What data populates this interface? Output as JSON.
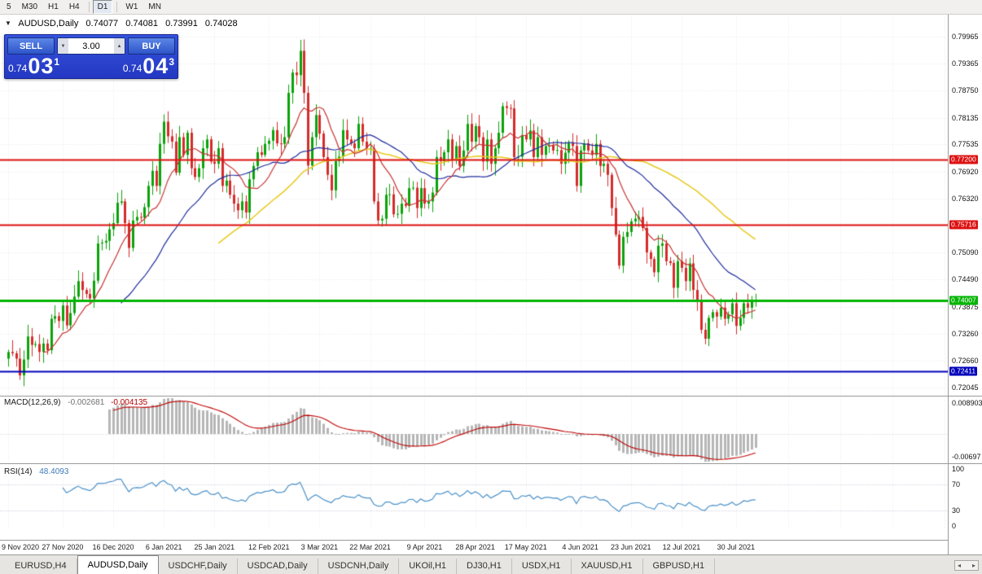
{
  "toolbar": {
    "timeframes": [
      "5",
      "M30",
      "H1",
      "H4",
      "D1",
      "W1",
      "MN"
    ],
    "active": "D1",
    "separators_after": [
      "H4",
      "D1"
    ]
  },
  "quote": {
    "symbol": "AUDUSD,Daily",
    "open": "0.74077",
    "high": "0.74081",
    "low": "0.73991",
    "close": "0.74028"
  },
  "trade_panel": {
    "sell_label": "SELL",
    "buy_label": "BUY",
    "volume": "3.00",
    "sell_price": {
      "prefix": "0.74",
      "big": "03",
      "sup": "1"
    },
    "buy_price": {
      "prefix": "0.74",
      "big": "04",
      "sup": "3"
    }
  },
  "icons": {
    "collapse": "▼",
    "volume_down": "▼",
    "volume_up": "▲",
    "scroll_left": "◂",
    "scroll_right": "▸"
  },
  "chart_data": {
    "type": "candlestick",
    "symbol": "AUDUSD",
    "timeframe": "Daily",
    "first_open": 0.727,
    "closes": [
      0.7285,
      0.7282,
      0.727,
      0.7232,
      0.7268,
      0.732,
      0.7301,
      0.7303,
      0.7285,
      0.7304,
      0.7289,
      0.736,
      0.7366,
      0.7355,
      0.739,
      0.7345,
      0.7373,
      0.741,
      0.7445,
      0.7425,
      0.7416,
      0.7406,
      0.7446,
      0.753,
      0.7532,
      0.7536,
      0.7562,
      0.7576,
      0.7622,
      0.7625,
      0.7576,
      0.752,
      0.7582,
      0.759,
      0.7588,
      0.7612,
      0.766,
      0.7694,
      0.766,
      0.7755,
      0.7805,
      0.7772,
      0.776,
      0.769,
      0.777,
      0.773,
      0.778,
      0.77,
      0.768,
      0.77,
      0.7745,
      0.7765,
      0.7715,
      0.771,
      0.7745,
      0.766,
      0.7672,
      0.764,
      0.762,
      0.7605,
      0.7625,
      0.76,
      0.7675,
      0.7705,
      0.7736,
      0.773,
      0.7755,
      0.7762,
      0.7786,
      0.7756,
      0.7755,
      0.777,
      0.787,
      0.7916,
      0.791,
      0.7965,
      0.787,
      0.7706,
      0.777,
      0.782,
      0.7778,
      0.7725,
      0.7685,
      0.765,
      0.7716,
      0.7726,
      0.7786,
      0.7765,
      0.7756,
      0.7745,
      0.78,
      0.776,
      0.7745,
      0.7745,
      0.7625,
      0.7582,
      0.7586,
      0.764,
      0.7641,
      0.7596,
      0.7597,
      0.762,
      0.7615,
      0.7655,
      0.7656,
      0.761,
      0.7655,
      0.762,
      0.7625,
      0.7645,
      0.7725,
      0.7716,
      0.7736,
      0.7765,
      0.772,
      0.775,
      0.7705,
      0.774,
      0.78,
      0.776,
      0.7795,
      0.777,
      0.7715,
      0.7765,
      0.771,
      0.7745,
      0.778,
      0.784,
      0.7836,
      0.7835,
      0.7725,
      0.7726,
      0.7775,
      0.7765,
      0.7785,
      0.7725,
      0.777,
      0.773,
      0.775,
      0.7751,
      0.774,
      0.7741,
      0.771,
      0.7735,
      0.7757,
      0.775,
      0.766,
      0.774,
      0.7756,
      0.774,
      0.773,
      0.7755,
      0.7705,
      0.771,
      0.7685,
      0.761,
      0.755,
      0.748,
      0.7545,
      0.7556,
      0.758,
      0.7586,
      0.759,
      0.7565,
      0.751,
      0.7495,
      0.7465,
      0.7525,
      0.753,
      0.749,
      0.7486,
      0.743,
      0.749,
      0.7475,
      0.7445,
      0.7485,
      0.7425,
      0.74,
      0.7335,
      0.7315,
      0.7362,
      0.7375,
      0.7365,
      0.7385,
      0.736,
      0.737,
      0.7395,
      0.7344,
      0.7362,
      0.7395,
      0.7385,
      0.74,
      0.74028
    ],
    "x_ticks": [
      {
        "label": "9 Nov 2020",
        "index": 0
      },
      {
        "label": "27 Nov 2020",
        "index": 14
      },
      {
        "label": "16 Dec 2020",
        "index": 27
      },
      {
        "label": "6 Jan 2021",
        "index": 40
      },
      {
        "label": "25 Jan 2021",
        "index": 53
      },
      {
        "label": "12 Feb 2021",
        "index": 67
      },
      {
        "label": "3 Mar 2021",
        "index": 80
      },
      {
        "label": "22 Mar 2021",
        "index": 93
      },
      {
        "label": "9 Apr 2021",
        "index": 107
      },
      {
        "label": "28 Apr 2021",
        "index": 120
      },
      {
        "label": "17 May 2021",
        "index": 133
      },
      {
        "label": "4 Jun 2021",
        "index": 147
      },
      {
        "label": "23 Jun 2021",
        "index": 160
      },
      {
        "label": "12 Jul 2021",
        "index": 173
      },
      {
        "label": "30 Jul 2021",
        "index": 187
      }
    ],
    "ylim": [
      0.719,
      0.8043
    ],
    "y_axis_labels": [
      "0.79965",
      "0.79365",
      "0.78750",
      "0.78135",
      "0.77535",
      "0.76920",
      "0.76320",
      "0.75705",
      "0.75090",
      "0.74490",
      "0.73875",
      "0.73260",
      "0.72660",
      "0.72045"
    ],
    "hlines": [
      {
        "value": 0.772,
        "label": "0.77200",
        "color": "#dd1111",
        "width": 2
      },
      {
        "value": 0.75716,
        "label": "0.75716",
        "color": "#dd1111",
        "width": 2
      },
      {
        "value": 0.74007,
        "label": "0.74007",
        "color": "#00b400",
        "width": 3
      },
      {
        "value": 0.72411,
        "label": "0.72411",
        "color": "#0000bb",
        "width": 2
      }
    ],
    "moving_averages": [
      {
        "period": 55,
        "color": "#e8c81e"
      },
      {
        "period": 30,
        "color": "#1f2d9e"
      },
      {
        "period": 10,
        "color": "#c83232"
      }
    ],
    "bull_color": "#0aa30a",
    "bear_color": "#d42b2b"
  },
  "macd": {
    "label": "MACD(12,26,9)",
    "value_main": "-0.002681",
    "value_signal": "-0.004135",
    "params": {
      "fast": 12,
      "slow": 26,
      "signal": 9
    },
    "ylim": [
      -0.00697,
      0.008903
    ],
    "y_labels": [
      "0.008903",
      "-0.00697"
    ],
    "hist_color": "#b6b6b6",
    "signal_color": "#c00000"
  },
  "rsi": {
    "label": "RSI(14)",
    "value": "48.4093",
    "period": 14,
    "ylim": [
      0,
      100
    ],
    "levels": [
      70,
      30
    ],
    "y_labels": [
      "100",
      "70",
      "30",
      "0"
    ],
    "line_color": "#4a90c8"
  },
  "tabs": {
    "items": [
      "EURUSD,H4",
      "AUDUSD,Daily",
      "USDCHF,Daily",
      "USDCAD,Daily",
      "USDCNH,Daily",
      "UKOil,H1",
      "DJ30,H1",
      "USDX,H1",
      "XAUUSD,H1",
      "GBPUSD,H1"
    ],
    "active": "AUDUSD,Daily"
  }
}
